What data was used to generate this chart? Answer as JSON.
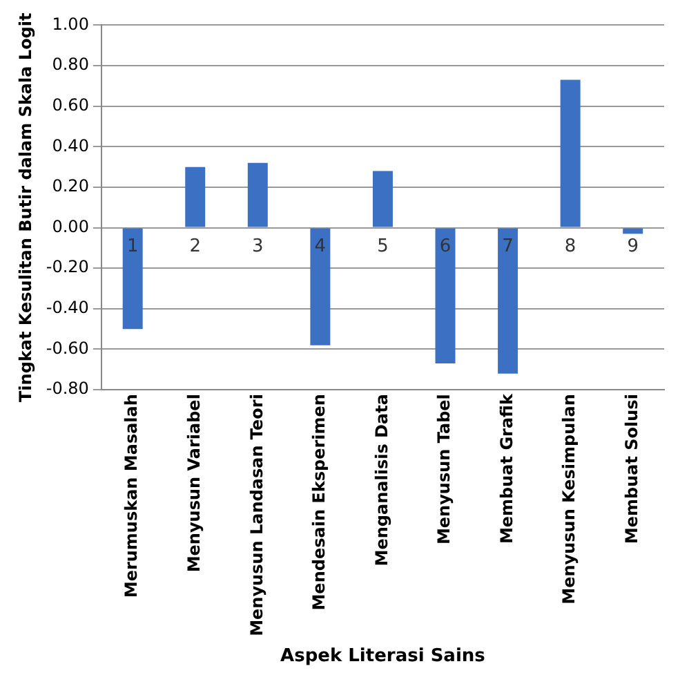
{
  "chart_data": {
    "type": "bar",
    "xlabel": "Aspek Literasi Sains",
    "ylabel": "Tingkat Kesulitan Butir dalam Skala Logit",
    "categories": [
      "Merumuskan Masalah",
      "Menyusun Variabel",
      "Menyusun Landasan Teori",
      "Mendesain Eksperimen",
      "Menganalisis Data",
      "Menyusun Tabel",
      "Membuat Grafik",
      "Menyusun Kesimpulan",
      "Membuat Solusi"
    ],
    "values": [
      -0.5,
      0.3,
      0.32,
      -0.58,
      0.28,
      -0.67,
      -0.72,
      0.73,
      -0.03
    ],
    "color": "#3b70c2",
    "ylim": [
      -0.8,
      1.0
    ],
    "yticks": [
      {
        "value": -0.8,
        "label": "-0.80"
      },
      {
        "value": -0.6,
        "label": "-0.60"
      },
      {
        "value": -0.4,
        "label": "-0.40"
      },
      {
        "value": -0.2,
        "label": "-0.20"
      },
      {
        "value": 0,
        "label": "0.00"
      },
      {
        "value": 0.2,
        "label": "0.20"
      },
      {
        "value": 0.4,
        "label": "0.40"
      },
      {
        "value": 0.6,
        "label": "0.60"
      },
      {
        "value": 0.8,
        "label": "0.80"
      },
      {
        "value": 1.0,
        "label": "1.00"
      }
    ],
    "grid": "y",
    "annotations": [
      "1",
      "2",
      "3",
      "4",
      "5",
      "6",
      "7",
      "8",
      "9"
    ]
  }
}
